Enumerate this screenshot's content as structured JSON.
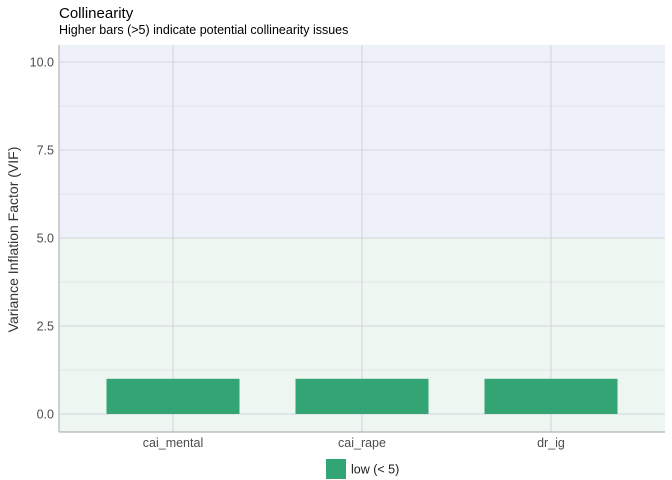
{
  "chart_data": {
    "type": "bar",
    "title": "Collinearity",
    "subtitle": "Higher bars (>5) indicate potential collinearity issues",
    "xlabel": "",
    "ylabel": "Variance Inflation Factor (VIF)",
    "categories": [
      "cai_mental",
      "cai_rape",
      "dr_ig"
    ],
    "series": [
      {
        "name": "low (< 5)",
        "values": [
          1.0,
          1.0,
          1.0
        ]
      }
    ],
    "ylim": [
      0,
      10
    ],
    "yticks": [
      0,
      2.5,
      5,
      7.5,
      10
    ],
    "ytick_labels": [
      "0.0",
      "2.5",
      "5.0",
      "7.5",
      "10.0"
    ],
    "bands": [
      {
        "from": 0,
        "to": 5,
        "color": "#eef6f2"
      },
      {
        "from": 5,
        "to": 10,
        "color": "#eef1fa"
      }
    ],
    "grid": true,
    "legend_position": "bottom",
    "colors": {
      "low": "#33a474"
    }
  }
}
